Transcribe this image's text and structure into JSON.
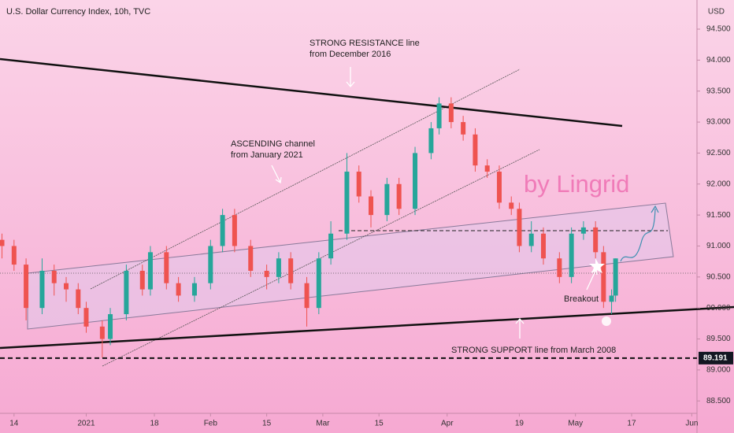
{
  "chart_data": {
    "type": "candlestick",
    "title": "U.S. Dollar Currency Index, 10h, TVC",
    "y_axis_unit": "USD",
    "annotations": {
      "resistance_1": "STRONG RESISTANCE line",
      "resistance_2": "from December 2016",
      "channel_1": "ASCENDING channel",
      "channel_2": "from January 2021",
      "watermark": "by Lingrid",
      "breakout": "Breakout",
      "support": "STRONG SUPPORT line from March 2008"
    },
    "price_level": {
      "value": 89.191,
      "label": "89.191"
    },
    "up_color": "#26a69a",
    "down_color": "#ef5350",
    "xlim": [
      -3.5,
      170.3
    ],
    "ylim": [
      88.3,
      94.97
    ],
    "xticks": [
      {
        "value": 0,
        "label": "14"
      },
      {
        "value": 18,
        "label": "2021"
      },
      {
        "value": 35,
        "label": "18"
      },
      {
        "value": 49,
        "label": "Feb"
      },
      {
        "value": 63,
        "label": "15"
      },
      {
        "value": 77,
        "label": "Mar"
      },
      {
        "value": 91,
        "label": "15"
      },
      {
        "value": 108,
        "label": "Apr"
      },
      {
        "value": 126,
        "label": "19"
      },
      {
        "value": 140,
        "label": "May"
      },
      {
        "value": 154,
        "label": "17"
      },
      {
        "value": 169,
        "label": "Jun"
      }
    ],
    "yticks": [
      {
        "value": 88.5,
        "label": "88.500"
      },
      {
        "value": 89,
        "label": "89.000"
      },
      {
        "value": 89.5,
        "label": "89.500"
      },
      {
        "value": 90,
        "label": "90.000"
      },
      {
        "value": 90.5,
        "label": "90.500"
      },
      {
        "value": 91,
        "label": "91.000"
      },
      {
        "value": 91.5,
        "label": "91.500"
      },
      {
        "value": 92,
        "label": "92.000"
      },
      {
        "value": 92.5,
        "label": "92.500"
      },
      {
        "value": 93,
        "label": "93.000"
      },
      {
        "value": 93.5,
        "label": "93.500"
      },
      {
        "value": 94,
        "label": "94.000"
      },
      {
        "value": 94.5,
        "label": "94.500"
      }
    ],
    "candles": [
      {
        "x": -3,
        "open": 91.1,
        "high": 91.2,
        "low": 90.8,
        "close": 91.0
      },
      {
        "x": 0,
        "open": 91.0,
        "high": 91.1,
        "low": 90.6,
        "close": 90.7
      },
      {
        "x": 3,
        "open": 90.7,
        "high": 90.8,
        "low": 89.8,
        "close": 90.0
      },
      {
        "x": 7,
        "open": 90.0,
        "high": 90.8,
        "low": 89.9,
        "close": 90.6
      },
      {
        "x": 10,
        "open": 90.6,
        "high": 90.7,
        "low": 90.2,
        "close": 90.4
      },
      {
        "x": 13,
        "open": 90.4,
        "high": 90.5,
        "low": 90.1,
        "close": 90.3
      },
      {
        "x": 16,
        "open": 90.3,
        "high": 90.4,
        "low": 89.9,
        "close": 90.0
      },
      {
        "x": 18,
        "open": 90.0,
        "high": 90.1,
        "low": 89.6,
        "close": 89.7
      },
      {
        "x": 22,
        "open": 89.7,
        "high": 89.8,
        "low": 89.2,
        "close": 89.5
      },
      {
        "x": 24,
        "open": 89.5,
        "high": 90.0,
        "low": 89.4,
        "close": 89.9
      },
      {
        "x": 28,
        "open": 89.9,
        "high": 90.7,
        "low": 89.8,
        "close": 90.6
      },
      {
        "x": 32,
        "open": 90.6,
        "high": 90.7,
        "low": 90.2,
        "close": 90.3
      },
      {
        "x": 34,
        "open": 90.3,
        "high": 91.0,
        "low": 90.2,
        "close": 90.9
      },
      {
        "x": 38,
        "open": 90.9,
        "high": 91.0,
        "low": 90.3,
        "close": 90.4
      },
      {
        "x": 41,
        "open": 90.4,
        "high": 90.5,
        "low": 90.1,
        "close": 90.2
      },
      {
        "x": 45,
        "open": 90.2,
        "high": 90.5,
        "low": 90.1,
        "close": 90.4
      },
      {
        "x": 49,
        "open": 90.4,
        "high": 91.1,
        "low": 90.3,
        "close": 91.0
      },
      {
        "x": 52,
        "open": 91.0,
        "high": 91.6,
        "low": 90.9,
        "close": 91.5
      },
      {
        "x": 55,
        "open": 91.5,
        "high": 91.6,
        "low": 90.9,
        "close": 91.0
      },
      {
        "x": 59,
        "open": 91.0,
        "high": 91.1,
        "low": 90.5,
        "close": 90.6
      },
      {
        "x": 63,
        "open": 90.6,
        "high": 90.7,
        "low": 90.3,
        "close": 90.5
      },
      {
        "x": 66,
        "open": 90.5,
        "high": 90.9,
        "low": 90.4,
        "close": 90.8
      },
      {
        "x": 69,
        "open": 90.8,
        "high": 90.9,
        "low": 90.3,
        "close": 90.4
      },
      {
        "x": 73,
        "open": 90.4,
        "high": 90.5,
        "low": 89.7,
        "close": 90.0
      },
      {
        "x": 76,
        "open": 90.0,
        "high": 90.9,
        "low": 89.9,
        "close": 90.8
      },
      {
        "x": 79,
        "open": 90.8,
        "high": 91.4,
        "low": 90.7,
        "close": 91.2
      },
      {
        "x": 83,
        "open": 91.2,
        "high": 92.5,
        "low": 91.1,
        "close": 92.2
      },
      {
        "x": 86,
        "open": 92.2,
        "high": 92.3,
        "low": 91.7,
        "close": 91.8
      },
      {
        "x": 89,
        "open": 91.8,
        "high": 91.9,
        "low": 91.3,
        "close": 91.5
      },
      {
        "x": 93,
        "open": 91.5,
        "high": 92.1,
        "low": 91.4,
        "close": 92.0
      },
      {
        "x": 96,
        "open": 92.0,
        "high": 92.1,
        "low": 91.5,
        "close": 91.6
      },
      {
        "x": 100,
        "open": 91.6,
        "high": 92.6,
        "low": 91.5,
        "close": 92.5
      },
      {
        "x": 104,
        "open": 92.5,
        "high": 93.0,
        "low": 92.4,
        "close": 92.9
      },
      {
        "x": 106,
        "open": 92.9,
        "high": 93.4,
        "low": 92.8,
        "close": 93.3
      },
      {
        "x": 109,
        "open": 93.3,
        "high": 93.4,
        "low": 92.9,
        "close": 93.0
      },
      {
        "x": 112,
        "open": 93.0,
        "high": 93.1,
        "low": 92.7,
        "close": 92.8
      },
      {
        "x": 115,
        "open": 92.8,
        "high": 92.9,
        "low": 92.2,
        "close": 92.3
      },
      {
        "x": 118,
        "open": 92.3,
        "high": 92.4,
        "low": 92.1,
        "close": 92.2
      },
      {
        "x": 121,
        "open": 92.2,
        "high": 92.3,
        "low": 91.6,
        "close": 91.7
      },
      {
        "x": 124,
        "open": 91.7,
        "high": 91.8,
        "low": 91.5,
        "close": 91.6
      },
      {
        "x": 126,
        "open": 91.6,
        "high": 91.7,
        "low": 90.9,
        "close": 91.0
      },
      {
        "x": 129,
        "open": 91.0,
        "high": 91.4,
        "low": 90.9,
        "close": 91.2
      },
      {
        "x": 132,
        "open": 91.2,
        "high": 91.3,
        "low": 90.7,
        "close": 90.8
      },
      {
        "x": 136,
        "open": 90.8,
        "high": 90.9,
        "low": 90.4,
        "close": 90.5
      },
      {
        "x": 139,
        "open": 90.5,
        "high": 91.3,
        "low": 90.4,
        "close": 91.2
      },
      {
        "x": 142,
        "open": 91.2,
        "high": 91.4,
        "low": 91.1,
        "close": 91.3
      },
      {
        "x": 145,
        "open": 91.3,
        "high": 91.4,
        "low": 90.8,
        "close": 90.9
      },
      {
        "x": 147,
        "open": 90.9,
        "high": 91.0,
        "low": 90.0,
        "close": 90.1
      },
      {
        "x": 149,
        "open": 90.1,
        "high": 90.3,
        "low": 89.9,
        "close": 90.2
      },
      {
        "x": 150,
        "open": 90.2,
        "high": 90.8,
        "low": 90.1,
        "close": 90.8
      }
    ]
  }
}
